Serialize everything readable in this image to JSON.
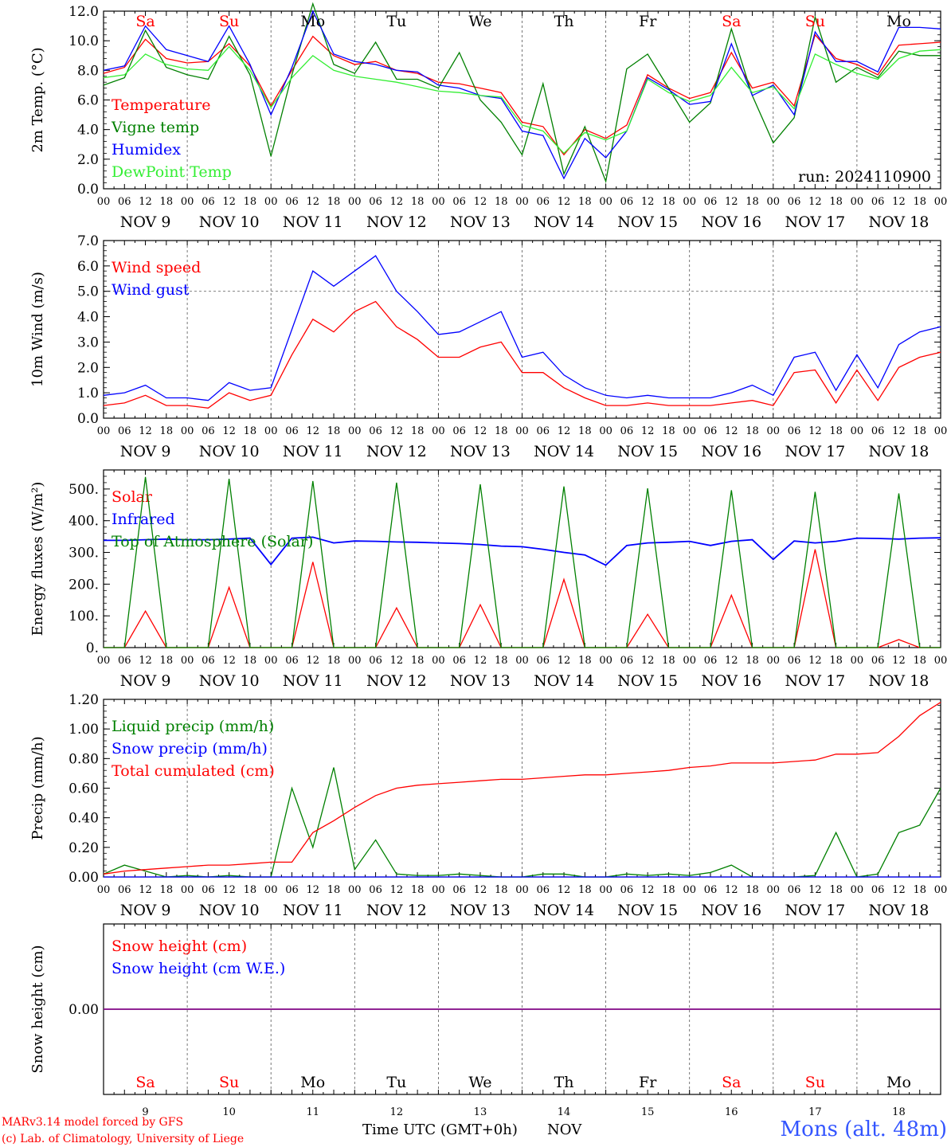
{
  "colors": {
    "red": "#ff0000",
    "green": "#008000",
    "blue": "#0000ff",
    "lightgreen": "#33ee33",
    "purple": "#800080",
    "footer_blue": "#3355ff"
  },
  "days": [
    "Sa",
    "Su",
    "Mo",
    "Tu",
    "We",
    "Th",
    "Fr",
    "Sa",
    "Su",
    "Mo"
  ],
  "weekend_flags": [
    true,
    true,
    false,
    false,
    false,
    false,
    false,
    true,
    true,
    false
  ],
  "date_labels": [
    "NOV  9",
    "NOV 10",
    "NOV 11",
    "NOV 12",
    "NOV 13",
    "NOV 14",
    "NOV 15",
    "NOV 16",
    "NOV 17",
    "NOV 18"
  ],
  "day_numbers": [
    "9",
    "10",
    "11",
    "12",
    "13",
    "14",
    "15",
    "16",
    "17",
    "18"
  ],
  "hour_ticks": [
    "00",
    "06",
    "12",
    "18"
  ],
  "hour_tick_end": "00",
  "run_label": "run: 2024110900",
  "footer": {
    "model": "MARv3.14 model forced by GFS",
    "lab": "(c) Lab. of Climatology, University of Liege",
    "axis_title": "Time UTC (GMT+0h)",
    "month": "NOV",
    "station": "Mons (alt. 48m)"
  },
  "chart_data": [
    {
      "type": "line",
      "ylabel": "2m Temp. (°C)",
      "ylim": [
        0,
        12
      ],
      "yticks": [
        "0.0",
        "2.0",
        "4.0",
        "6.0",
        "8.0",
        "10.0",
        "12.0"
      ],
      "legend_position": "left",
      "x_hours": [
        0,
        6,
        12,
        18,
        24,
        30,
        36,
        42,
        48,
        54,
        60,
        66,
        72,
        78,
        84,
        90,
        96,
        102,
        108,
        114,
        120,
        126,
        132,
        138,
        144,
        150,
        156,
        162,
        168,
        174,
        180,
        186,
        192,
        198,
        204,
        210,
        216,
        222,
        228,
        234,
        240
      ],
      "series": [
        {
          "name": "Temperature",
          "color": "red",
          "values": [
            7.8,
            8.2,
            10.1,
            8.8,
            8.5,
            8.6,
            9.8,
            8.3,
            5.6,
            8.0,
            10.3,
            9.0,
            8.4,
            8.6,
            8.0,
            7.8,
            7.2,
            7.1,
            6.8,
            6.5,
            4.5,
            4.2,
            2.3,
            4.0,
            3.4,
            4.3,
            7.7,
            6.8,
            6.1,
            6.5,
            9.2,
            6.8,
            7.2,
            5.6,
            10.4,
            8.8,
            8.4,
            7.7,
            9.7,
            9.8,
            9.9
          ]
        },
        {
          "name": "Vigne temp",
          "color": "green",
          "values": [
            7.0,
            7.5,
            10.7,
            8.2,
            7.7,
            7.4,
            10.3,
            7.7,
            2.2,
            7.7,
            12.5,
            8.4,
            7.8,
            9.9,
            7.4,
            7.4,
            6.8,
            9.2,
            6.0,
            4.5,
            2.3,
            7.1,
            1.0,
            4.2,
            0.5,
            8.1,
            9.1,
            6.8,
            4.5,
            5.8,
            10.8,
            6.3,
            3.1,
            4.8,
            11.6,
            7.2,
            8.2,
            7.5,
            9.3,
            9.0,
            9.0
          ]
        },
        {
          "name": "Humidex",
          "color": "blue",
          "values": [
            8.0,
            8.3,
            11.0,
            9.4,
            9.0,
            8.6,
            11.0,
            8.4,
            5.0,
            8.2,
            12.0,
            9.1,
            8.6,
            8.4,
            8.0,
            7.9,
            7.0,
            6.8,
            6.3,
            6.1,
            3.9,
            3.6,
            0.7,
            3.4,
            2.1,
            3.9,
            7.5,
            6.7,
            5.7,
            5.9,
            9.8,
            6.3,
            7.0,
            5.0,
            10.6,
            8.6,
            8.6,
            7.9,
            10.9,
            10.9,
            10.8
          ]
        },
        {
          "name": "DewPoint Temp",
          "color": "lightgreen",
          "values": [
            7.5,
            7.7,
            9.1,
            8.4,
            8.1,
            8.0,
            9.6,
            8.0,
            5.5,
            7.5,
            9.0,
            8.0,
            7.6,
            7.4,
            7.2,
            6.9,
            6.6,
            6.5,
            6.3,
            6.2,
            4.3,
            3.9,
            2.4,
            3.8,
            3.3,
            3.9,
            7.4,
            6.5,
            5.9,
            6.3,
            8.2,
            6.5,
            6.9,
            5.4,
            9.1,
            8.4,
            7.8,
            7.4,
            8.8,
            9.3,
            9.4
          ]
        }
      ]
    },
    {
      "type": "line",
      "ylabel": "10m Wind (m/s)",
      "ylim": [
        0,
        7
      ],
      "yticks": [
        "0.0",
        "1.0",
        "2.0",
        "3.0",
        "4.0",
        "5.0",
        "6.0",
        "7.0"
      ],
      "reference_line": 5.0,
      "legend_position": "left",
      "x_hours": [
        0,
        6,
        12,
        18,
        24,
        30,
        36,
        42,
        48,
        54,
        60,
        66,
        72,
        78,
        84,
        90,
        96,
        102,
        108,
        114,
        120,
        126,
        132,
        138,
        144,
        150,
        156,
        162,
        168,
        174,
        180,
        186,
        192,
        198,
        204,
        210,
        216,
        222,
        228,
        234,
        240
      ],
      "series": [
        {
          "name": "Wind speed",
          "color": "red",
          "values": [
            0.5,
            0.6,
            0.9,
            0.5,
            0.5,
            0.4,
            1.0,
            0.7,
            0.9,
            2.5,
            3.9,
            3.4,
            4.2,
            4.6,
            3.6,
            3.1,
            2.4,
            2.4,
            2.8,
            3.0,
            1.8,
            1.8,
            1.2,
            0.8,
            0.5,
            0.5,
            0.6,
            0.5,
            0.5,
            0.5,
            0.6,
            0.7,
            0.5,
            1.8,
            1.9,
            0.6,
            1.9,
            0.7,
            2.0,
            2.4,
            2.6
          ]
        },
        {
          "name": "Wind gust",
          "color": "blue",
          "values": [
            0.9,
            1.0,
            1.3,
            0.8,
            0.8,
            0.7,
            1.4,
            1.1,
            1.2,
            3.5,
            5.8,
            5.2,
            5.8,
            6.4,
            5.0,
            4.2,
            3.3,
            3.4,
            3.8,
            4.2,
            2.4,
            2.6,
            1.7,
            1.2,
            0.9,
            0.8,
            0.9,
            0.8,
            0.8,
            0.8,
            1.0,
            1.3,
            0.9,
            2.4,
            2.6,
            1.1,
            2.5,
            1.2,
            2.9,
            3.4,
            3.6
          ]
        }
      ]
    },
    {
      "type": "line",
      "ylabel": "Energy fluxes (W/m²)",
      "ylim": [
        0,
        560
      ],
      "yticks": [
        "0.",
        "100.",
        "200.",
        "300.",
        "400.",
        "500."
      ],
      "legend_position": "left",
      "x_hours": [
        0,
        6,
        12,
        18,
        24,
        30,
        36,
        42,
        48,
        54,
        60,
        66,
        72,
        78,
        84,
        90,
        96,
        102,
        108,
        114,
        120,
        126,
        132,
        138,
        144,
        150,
        156,
        162,
        168,
        174,
        180,
        186,
        192,
        198,
        204,
        210,
        216,
        222,
        228,
        234,
        240
      ],
      "series": [
        {
          "name": "Solar",
          "color": "red",
          "values": [
            0,
            0,
            115,
            0,
            0,
            0,
            190,
            0,
            0,
            0,
            270,
            0,
            0,
            0,
            125,
            0,
            0,
            0,
            135,
            0,
            0,
            0,
            215,
            0,
            0,
            0,
            105,
            0,
            0,
            0,
            165,
            0,
            0,
            0,
            310,
            0,
            0,
            0,
            25,
            0,
            0
          ]
        },
        {
          "name": "Infrared",
          "color": "blue",
          "values": [
            338,
            338,
            340,
            342,
            340,
            340,
            342,
            345,
            262,
            345,
            348,
            330,
            336,
            335,
            333,
            332,
            330,
            328,
            325,
            320,
            318,
            310,
            300,
            292,
            260,
            322,
            330,
            332,
            335,
            322,
            335,
            340,
            278,
            336,
            330,
            335,
            345,
            344,
            342,
            345,
            346
          ]
        },
        {
          "name": "Top of Atmosphere (Solar)",
          "color": "green",
          "values": [
            0,
            0,
            538,
            0,
            0,
            0,
            532,
            0,
            0,
            0,
            525,
            0,
            0,
            0,
            520,
            0,
            0,
            0,
            515,
            0,
            0,
            0,
            508,
            0,
            0,
            0,
            502,
            0,
            0,
            0,
            496,
            0,
            0,
            0,
            491,
            0,
            0,
            0,
            486,
            0,
            0
          ]
        }
      ]
    },
    {
      "type": "line",
      "ylabel": "Precip (mm/h)",
      "ylim": [
        0,
        1.2
      ],
      "yticks": [
        "0.00",
        "0.20",
        "0.40",
        "0.60",
        "0.80",
        "1.00",
        "1.20"
      ],
      "legend_position": "left",
      "x_hours": [
        0,
        6,
        12,
        18,
        24,
        30,
        36,
        42,
        48,
        54,
        60,
        66,
        72,
        78,
        84,
        90,
        96,
        102,
        108,
        114,
        120,
        126,
        132,
        138,
        144,
        150,
        156,
        162,
        168,
        174,
        180,
        186,
        192,
        198,
        204,
        210,
        216,
        222,
        228,
        234,
        240
      ],
      "series": [
        {
          "name": "Liquid precip (mm/h)",
          "color": "green",
          "values": [
            0.02,
            0.08,
            0.04,
            0.0,
            0.01,
            0.0,
            0.01,
            0.0,
            0.0,
            0.6,
            0.2,
            0.74,
            0.05,
            0.25,
            0.02,
            0.01,
            0.01,
            0.02,
            0.01,
            0.0,
            0.0,
            0.02,
            0.02,
            0.0,
            0.0,
            0.02,
            0.01,
            0.02,
            0.01,
            0.03,
            0.08,
            0.0,
            0.0,
            0.0,
            0.01,
            0.3,
            0.0,
            0.02,
            0.3,
            0.35,
            0.6
          ]
        },
        {
          "name": "Snow precip (mm/h)",
          "color": "blue",
          "values": [
            0,
            0,
            0,
            0,
            0,
            0,
            0,
            0,
            0,
            0,
            0,
            0,
            0,
            0,
            0,
            0,
            0,
            0,
            0,
            0,
            0,
            0,
            0,
            0,
            0,
            0,
            0,
            0,
            0,
            0,
            0,
            0,
            0,
            0,
            0,
            0,
            0,
            0,
            0,
            0,
            0
          ]
        },
        {
          "name": "Total cumulated (cm)",
          "color": "red",
          "values": [
            0.02,
            0.04,
            0.05,
            0.06,
            0.07,
            0.08,
            0.08,
            0.09,
            0.1,
            0.1,
            0.3,
            0.38,
            0.47,
            0.55,
            0.6,
            0.62,
            0.63,
            0.64,
            0.65,
            0.66,
            0.66,
            0.67,
            0.68,
            0.69,
            0.69,
            0.7,
            0.71,
            0.72,
            0.74,
            0.75,
            0.77,
            0.77,
            0.77,
            0.78,
            0.79,
            0.83,
            0.83,
            0.84,
            0.95,
            1.09,
            1.18
          ]
        }
      ]
    },
    {
      "type": "line",
      "ylabel": "Snow height (cm)",
      "ylim": [
        -1,
        1
      ],
      "yticks": [
        "0.00"
      ],
      "legend_position": "left",
      "x_hours": [
        0,
        240
      ],
      "series": [
        {
          "name": "Snow height (cm)",
          "color": "red",
          "values": [
            0,
            0
          ]
        },
        {
          "name": "Snow height (cm W.E.)",
          "color": "blue",
          "values": [
            0,
            0
          ]
        }
      ]
    }
  ]
}
